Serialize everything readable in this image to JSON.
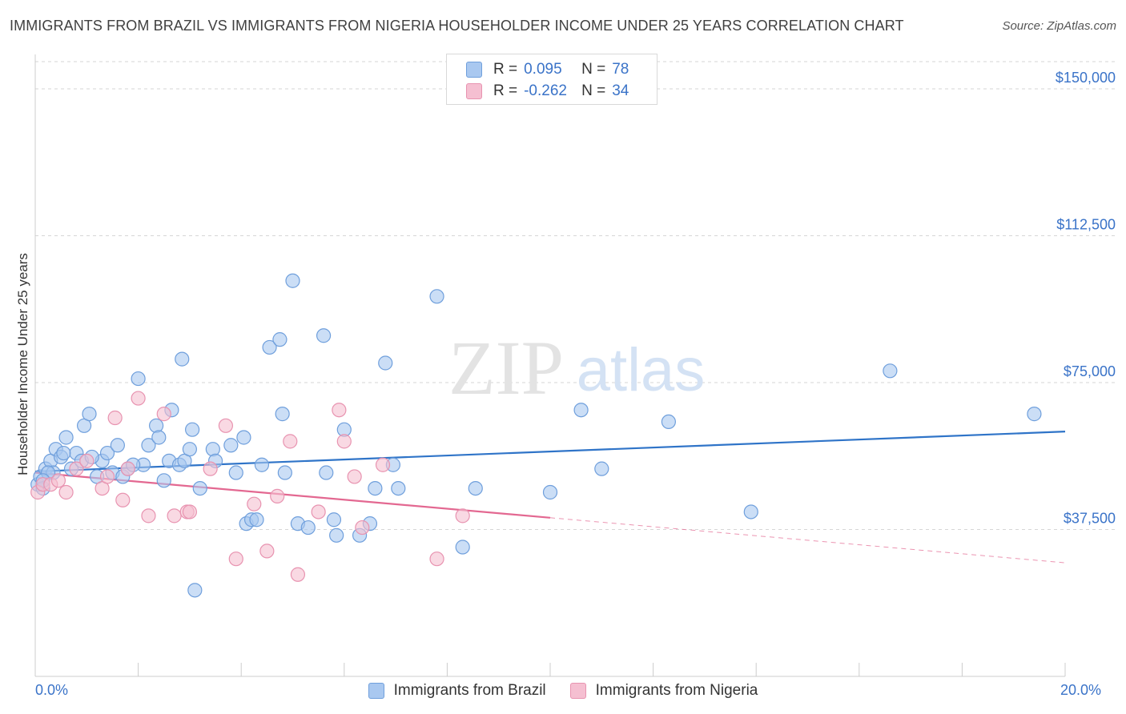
{
  "header": {
    "title": "IMMIGRANTS FROM BRAZIL VS IMMIGRANTS FROM NIGERIA HOUSEHOLDER INCOME UNDER 25 YEARS CORRELATION CHART",
    "source": "Source: ZipAtlas.com"
  },
  "watermark": {
    "zip": "ZIP",
    "atlas": "atlas"
  },
  "stats": {
    "rows": [
      {
        "r_label": "R =",
        "r_value": "0.095",
        "n_label": "N =",
        "n_value": "78"
      },
      {
        "r_label": "R =",
        "r_value": "-0.262",
        "n_label": "N =",
        "n_value": "34"
      }
    ]
  },
  "legend": {
    "items": [
      {
        "label": "Immigrants from Brazil"
      },
      {
        "label": "Immigrants from Nigeria"
      }
    ]
  },
  "colors": {
    "brazil_fill": "#a9c8f0",
    "brazil_stroke": "#6f9fdc",
    "brazil_line": "#2f74c8",
    "nigeria_fill": "#f5bfd1",
    "nigeria_stroke": "#e893b0",
    "nigeria_line": "#e36891",
    "tick_label": "#3a73c8",
    "grid": "#d6d6d6"
  },
  "chart_data": {
    "type": "scatter",
    "title": "IMMIGRANTS FROM BRAZIL VS IMMIGRANTS FROM NIGERIA HOUSEHOLDER INCOME UNDER 25 YEARS CORRELATION CHART",
    "xlabel": "",
    "ylabel": "Householder Income Under 25 years",
    "xlim": [
      0,
      20
    ],
    "ylim": [
      0,
      160000
    ],
    "x_tick_labels": [
      "0.0%",
      "20.0%"
    ],
    "y_ticks": [
      37500,
      75000,
      112500,
      150000
    ],
    "y_tick_labels": [
      "$37,500",
      "$75,000",
      "$112,500",
      "$150,000"
    ],
    "grid": "horizontal dashed",
    "legend_position": "bottom",
    "series": [
      {
        "name": "Immigrants from Brazil",
        "r": 0.095,
        "n": 78,
        "trend": {
          "x": [
            0,
            20
          ],
          "y": [
            52300,
            62500
          ]
        },
        "points": [
          [
            0.05,
            49000
          ],
          [
            0.1,
            51000
          ],
          [
            0.15,
            48000
          ],
          [
            0.2,
            53000
          ],
          [
            0.3,
            55000
          ],
          [
            0.35,
            52000
          ],
          [
            0.4,
            58000
          ],
          [
            0.5,
            56000
          ],
          [
            0.6,
            61000
          ],
          [
            0.7,
            53000
          ],
          [
            0.8,
            57000
          ],
          [
            0.9,
            55000
          ],
          [
            0.95,
            64000
          ],
          [
            1.05,
            67000
          ],
          [
            1.2,
            51000
          ],
          [
            1.3,
            55000
          ],
          [
            1.4,
            57000
          ],
          [
            1.5,
            52000
          ],
          [
            1.6,
            59000
          ],
          [
            1.7,
            51000
          ],
          [
            1.8,
            53000
          ],
          [
            2.0,
            76000
          ],
          [
            2.1,
            54000
          ],
          [
            2.2,
            59000
          ],
          [
            2.35,
            64000
          ],
          [
            2.4,
            61000
          ],
          [
            2.5,
            50000
          ],
          [
            2.6,
            55000
          ],
          [
            2.65,
            68000
          ],
          [
            2.8,
            54000
          ],
          [
            2.85,
            81000
          ],
          [
            2.9,
            55000
          ],
          [
            3.0,
            58000
          ],
          [
            3.05,
            63000
          ],
          [
            3.2,
            48000
          ],
          [
            3.45,
            58000
          ],
          [
            3.8,
            59000
          ],
          [
            3.9,
            52000
          ],
          [
            4.05,
            61000
          ],
          [
            4.1,
            39000
          ],
          [
            4.2,
            40000
          ],
          [
            4.3,
            40000
          ],
          [
            4.4,
            54000
          ],
          [
            4.55,
            84000
          ],
          [
            4.75,
            86000
          ],
          [
            4.8,
            67000
          ],
          [
            4.85,
            52000
          ],
          [
            5.0,
            101000
          ],
          [
            5.1,
            39000
          ],
          [
            5.3,
            38000
          ],
          [
            5.6,
            87000
          ],
          [
            5.65,
            52000
          ],
          [
            5.8,
            40000
          ],
          [
            5.85,
            36000
          ],
          [
            6.0,
            63000
          ],
          [
            6.3,
            36000
          ],
          [
            6.5,
            39000
          ],
          [
            6.6,
            48000
          ],
          [
            6.8,
            80000
          ],
          [
            6.95,
            54000
          ],
          [
            7.05,
            48000
          ],
          [
            7.8,
            97000
          ],
          [
            8.3,
            33000
          ],
          [
            8.55,
            48000
          ],
          [
            10.0,
            47000
          ],
          [
            10.6,
            68000
          ],
          [
            11.0,
            53000
          ],
          [
            12.3,
            65000
          ],
          [
            13.9,
            42000
          ],
          [
            16.6,
            78000
          ],
          [
            19.4,
            67000
          ],
          [
            3.1,
            22000
          ],
          [
            0.25,
            52000
          ],
          [
            0.55,
            57000
          ],
          [
            1.1,
            56000
          ],
          [
            1.9,
            54000
          ],
          [
            3.5,
            55000
          ],
          [
            0.15,
            50000
          ]
        ]
      },
      {
        "name": "Immigrants from Nigeria",
        "r": -0.262,
        "n": 34,
        "trend": {
          "x": [
            0,
            10
          ],
          "y": [
            52000,
            40500
          ]
        },
        "trend_extension": {
          "x": [
            10,
            20
          ],
          "y": [
            40500,
            29000
          ]
        },
        "points": [
          [
            0.05,
            47000
          ],
          [
            0.15,
            49000
          ],
          [
            0.3,
            49000
          ],
          [
            0.45,
            50000
          ],
          [
            0.6,
            47000
          ],
          [
            0.8,
            53000
          ],
          [
            1.0,
            55000
          ],
          [
            1.3,
            48000
          ],
          [
            1.4,
            51000
          ],
          [
            1.55,
            66000
          ],
          [
            1.7,
            45000
          ],
          [
            1.8,
            53000
          ],
          [
            2.0,
            71000
          ],
          [
            2.2,
            41000
          ],
          [
            2.5,
            67000
          ],
          [
            2.7,
            41000
          ],
          [
            2.95,
            42000
          ],
          [
            3.0,
            42000
          ],
          [
            3.4,
            53000
          ],
          [
            3.7,
            64000
          ],
          [
            3.9,
            30000
          ],
          [
            4.25,
            44000
          ],
          [
            4.5,
            32000
          ],
          [
            4.7,
            46000
          ],
          [
            4.95,
            60000
          ],
          [
            5.1,
            26000
          ],
          [
            5.5,
            42000
          ],
          [
            5.9,
            68000
          ],
          [
            6.0,
            60000
          ],
          [
            6.2,
            51000
          ],
          [
            6.35,
            38000
          ],
          [
            6.75,
            54000
          ],
          [
            7.8,
            30000
          ],
          [
            8.3,
            41000
          ]
        ]
      }
    ]
  }
}
